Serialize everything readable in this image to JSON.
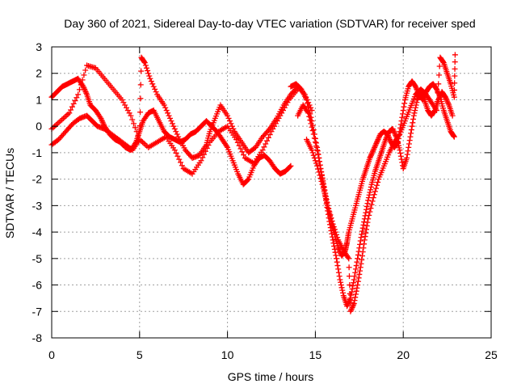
{
  "chart_data": {
    "type": "scatter",
    "title": "Day 360 of 2021, Sidereal Day-to-day VTEC variation (SDTVAR) for receiver sped",
    "xlabel": "GPS time / hours",
    "ylabel": "SDTVAR / TECUs",
    "xlim": [
      0,
      25
    ],
    "ylim": [
      -8,
      3
    ],
    "xticks": [
      0,
      5,
      10,
      15,
      20,
      25
    ],
    "yticks": [
      3,
      2,
      1,
      0,
      -1,
      -2,
      -3,
      -4,
      -5,
      -6,
      -7,
      -8
    ],
    "grid": true,
    "marker": "+",
    "color": "#ff0000",
    "series": [
      {
        "x": [
          0.0,
          0.3,
          0.6,
          0.9,
          1.2,
          1.5,
          1.8,
          2.0,
          2.2,
          2.5,
          2.8,
          3.0,
          3.3,
          3.6,
          3.9,
          4.2,
          4.5,
          4.8,
          5.0,
          5.2,
          5.5,
          5.8,
          6.1,
          6.4,
          6.7,
          7.0,
          7.3,
          7.6,
          7.9,
          8.2,
          8.5,
          8.8,
          9.1,
          9.4,
          9.7,
          10.0,
          10.3,
          10.6,
          10.9,
          11.2,
          11.5,
          11.8,
          12.1,
          12.4,
          12.7,
          13.0,
          13.3,
          13.6
        ],
        "y": [
          1.1,
          1.3,
          1.5,
          1.6,
          1.7,
          1.8,
          1.5,
          1.2,
          0.8,
          0.6,
          0.3,
          0.0,
          -0.3,
          -0.5,
          -0.6,
          -0.8,
          -0.9,
          -0.6,
          -0.2,
          0.2,
          0.5,
          0.6,
          0.2,
          -0.2,
          -0.4,
          -0.5,
          -0.6,
          -0.5,
          -0.3,
          -0.2,
          0.0,
          0.2,
          0.0,
          -0.2,
          -0.5,
          -0.8,
          -1.3,
          -1.8,
          -2.2,
          -2.0,
          -1.5,
          -1.2,
          -1.1,
          -1.3,
          -1.6,
          -1.8,
          -1.7,
          -1.5
        ]
      },
      {
        "x": [
          0.0,
          0.4,
          0.8,
          1.2,
          1.6,
          2.0,
          2.3,
          2.6,
          3.0,
          3.4,
          3.8,
          4.2,
          4.6,
          5.0,
          5.1,
          5.3,
          5.6,
          6.0,
          6.4,
          6.8,
          7.2,
          7.6,
          8.0,
          8.4,
          8.8,
          9.0,
          9.3,
          9.6,
          10.0,
          10.4,
          10.8,
          11.2,
          11.6,
          12.0,
          12.4,
          12.8,
          13.2,
          13.6,
          14.0,
          14.4,
          14.8
        ],
        "y": [
          -0.7,
          -0.5,
          -0.2,
          0.1,
          0.3,
          0.4,
          0.2,
          0.0,
          -0.1,
          -0.3,
          -0.5,
          -0.7,
          -0.9,
          -0.5,
          2.6,
          2.4,
          1.8,
          1.2,
          0.8,
          0.2,
          -0.4,
          -0.9,
          -1.2,
          -1.1,
          -0.7,
          -0.2,
          0.3,
          0.8,
          0.4,
          -0.2,
          -0.6,
          -1.0,
          -0.8,
          -0.4,
          -0.1,
          0.3,
          0.8,
          1.2,
          1.5,
          1.2,
          0.6
        ]
      },
      {
        "x": [
          0.0,
          0.5,
          1.0,
          1.5,
          2.0,
          2.5,
          3.0,
          3.5,
          4.0,
          4.5,
          5.0,
          5.5,
          6.0,
          6.5,
          7.0,
          7.5,
          8.0,
          8.5,
          9.0,
          9.5,
          10.0,
          10.5,
          11.0,
          11.5,
          12.0,
          12.5,
          13.0,
          13.5,
          14.0
        ],
        "y": [
          -0.1,
          0.2,
          0.5,
          1.2,
          2.3,
          2.2,
          1.8,
          1.4,
          1.0,
          0.4,
          -0.5,
          -0.8,
          -0.6,
          -0.4,
          -0.9,
          -1.6,
          -1.8,
          -1.3,
          -0.6,
          -0.2,
          0.0,
          -0.5,
          -1.2,
          -1.4,
          -0.9,
          -0.2,
          0.4,
          1.0,
          1.4
        ]
      },
      {
        "x": [
          13.6,
          13.9,
          14.2,
          14.5,
          14.8,
          15.1,
          15.3,
          15.5,
          15.7,
          15.9,
          16.1,
          16.3,
          16.5,
          16.7,
          16.8,
          16.9,
          17.1,
          17.3,
          17.5,
          17.7,
          17.9,
          18.1,
          18.3,
          18.5,
          18.7,
          18.9,
          19.1,
          19.3,
          19.5,
          19.7,
          19.9,
          20.1,
          20.3,
          20.5,
          20.7,
          20.9,
          21.1,
          21.3,
          21.5,
          21.7,
          21.9,
          22.1,
          22.3,
          22.5,
          22.7,
          22.9
        ],
        "y": [
          1.5,
          1.6,
          1.4,
          1.0,
          0.2,
          -0.8,
          -1.6,
          -2.3,
          -3.0,
          -3.6,
          -4.1,
          -4.6,
          -4.9,
          -4.7,
          -4.4,
          -4.0,
          -3.5,
          -3.0,
          -2.5,
          -2.0,
          -1.6,
          -1.2,
          -0.9,
          -0.6,
          -0.3,
          -0.2,
          -0.3,
          -0.6,
          -0.8,
          -0.6,
          0.2,
          1.0,
          1.5,
          1.7,
          1.5,
          1.2,
          1.0,
          1.3,
          1.5,
          1.6,
          1.4,
          1.1,
          0.6,
          0.2,
          -0.2,
          -0.4
        ]
      },
      {
        "x": [
          14.0,
          14.3,
          14.6,
          14.9,
          15.2,
          15.4,
          15.6,
          15.8,
          16.0,
          16.2,
          16.4,
          16.6,
          16.8,
          17.0,
          17.2,
          17.4,
          17.6,
          17.8,
          18.0,
          18.2,
          18.4,
          18.6,
          18.8,
          19.0,
          19.2,
          19.4,
          19.6,
          19.8,
          20.0,
          20.2,
          20.4,
          20.6,
          20.8,
          21.0,
          21.2,
          21.4,
          21.6,
          21.8,
          22.0,
          22.2,
          22.4,
          22.6,
          22.8
        ],
        "y": [
          0.4,
          0.8,
          0.5,
          -0.3,
          -1.2,
          -2.0,
          -2.8,
          -3.6,
          -4.3,
          -5.0,
          -5.8,
          -6.4,
          -6.8,
          -6.5,
          -5.8,
          -5.0,
          -4.2,
          -3.5,
          -2.8,
          -2.2,
          -1.7,
          -1.3,
          -0.9,
          -0.5,
          -0.2,
          -0.1,
          -0.4,
          -0.9,
          -1.6,
          -1.2,
          -0.4,
          0.4,
          1.0,
          1.3,
          1.0,
          0.6,
          0.4,
          0.6,
          1.0,
          1.3,
          1.1,
          0.8,
          0.4
        ]
      },
      {
        "x": [
          14.5,
          14.8,
          15.1,
          15.4,
          15.7,
          16.0,
          16.3,
          16.6,
          16.9,
          17.0,
          17.2,
          17.4,
          17.6,
          17.8,
          18.0,
          18.3,
          18.6,
          18.9,
          19.2,
          19.5,
          19.8,
          20.1,
          20.4,
          20.7,
          21.0,
          21.3,
          21.6,
          21.9,
          22.1,
          22.3,
          22.5,
          22.7,
          22.9,
          22.95
        ],
        "y": [
          -0.5,
          -0.9,
          -1.5,
          -2.2,
          -3.0,
          -3.7,
          -4.3,
          -4.7,
          -5.0,
          -7.0,
          -6.7,
          -6.0,
          -5.2,
          -4.3,
          -3.5,
          -2.7,
          -2.0,
          -1.5,
          -1.0,
          -0.6,
          -0.3,
          0.2,
          0.7,
          1.2,
          1.4,
          1.2,
          0.9,
          0.6,
          2.6,
          2.4,
          2.0,
          1.6,
          1.1,
          2.7
        ]
      }
    ]
  }
}
